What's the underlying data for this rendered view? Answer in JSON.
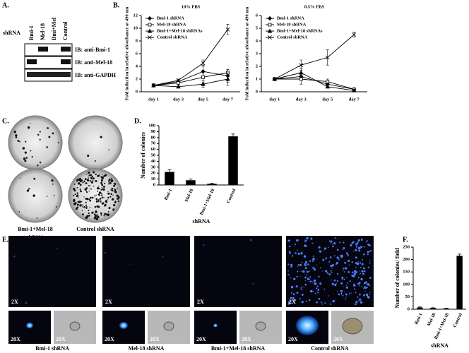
{
  "panel_labels": [
    "A.",
    "B.",
    "C.",
    "D.",
    "E.",
    "F."
  ],
  "blot": {
    "row_label": "shRNA",
    "lanes": [
      "Bmi-1",
      "Mel-18",
      "Bmi+Mel",
      "Control"
    ],
    "antibodies": [
      "IB: anti-Bmi-1",
      "IB: anti-Mel-18",
      "IB: anti-GAPDH"
    ]
  },
  "colony_plates": [
    [
      "Bmi-1 shRNA"
    ],
    [
      "Mel-18 shRNA"
    ],
    [
      "Bmi-1+Mel-18",
      "shRNA"
    ],
    [
      "Control shRNA"
    ]
  ],
  "imaging": {
    "low_mag": "2X",
    "high_mag": "20X",
    "captions": [
      "Bmi-1 shRNA",
      "Mel-18 shRNA",
      "Bmi-1+Mel-18 shRNA",
      "Control shRNA"
    ]
  },
  "chart_data": [
    {
      "type": "line",
      "title": "10% FBS",
      "ylabel": "Fold induction in relative absorbance at 490 nm",
      "categories": [
        "day 1",
        "day 3",
        "day 5",
        "day 7"
      ],
      "ylim": [
        0,
        12
      ],
      "yticks": [
        0,
        2,
        4,
        6,
        8,
        10,
        12
      ],
      "series": [
        {
          "name": "Bmi-1 shRNA",
          "color": "#000000",
          "marker": "diamond",
          "values": [
            1,
            1.6,
            3.2,
            2.5
          ],
          "errors": [
            0.1,
            0.3,
            1.0,
            1.0
          ]
        },
        {
          "name": "Mel-18 shRNA",
          "color": "#000000",
          "marker": "square",
          "values": [
            1,
            1.4,
            2.3,
            3.0
          ],
          "errors": [
            0.1,
            0.2,
            0.8,
            0.5
          ]
        },
        {
          "name": "Bmi-1+Mel-18 shRNAs",
          "color": "#000000",
          "marker": "triangle",
          "values": [
            1,
            0.8,
            1.2,
            2.0
          ],
          "errors": [
            0.1,
            0.1,
            0.5,
            1.0
          ]
        },
        {
          "name": "Control shRNA",
          "color": "#000000",
          "marker": "cross",
          "values": [
            1,
            1.8,
            4.5,
            9.8
          ],
          "errors": [
            0.1,
            0.2,
            0.5,
            0.8
          ]
        }
      ]
    },
    {
      "type": "line",
      "title": "0.5% FBS",
      "ylabel": "Fold induction in relative absorbance at 490 nm",
      "categories": [
        "day 1",
        "day 3",
        "day 5",
        "day 7"
      ],
      "ylim": [
        0,
        6
      ],
      "yticks": [
        0,
        1,
        2,
        3,
        4,
        5,
        6
      ],
      "series": [
        {
          "name": "Bmi-1 shRNA",
          "color": "#000000",
          "marker": "diamond",
          "values": [
            1,
            1.2,
            0.6,
            0.2
          ],
          "errors": [
            0.05,
            0.3,
            0.2,
            0.1
          ]
        },
        {
          "name": "Mel-18 shRNA",
          "color": "#000000",
          "marker": "square",
          "values": [
            1,
            1.0,
            0.8,
            0.2
          ],
          "errors": [
            0.05,
            0.4,
            0.2,
            0.1
          ]
        },
        {
          "name": "Bmi-1+Mel-18 shRNAs",
          "color": "#000000",
          "marker": "triangle",
          "values": [
            1,
            1.5,
            0.4,
            0.1
          ],
          "errors": [
            0.05,
            0.3,
            0.1,
            0.1
          ]
        },
        {
          "name": "Control shRNA",
          "color": "#000000",
          "marker": "cross",
          "values": [
            1,
            2.1,
            2.7,
            4.5
          ],
          "errors": [
            0.05,
            0.4,
            0.6,
            0.2
          ]
        }
      ]
    },
    {
      "type": "bar",
      "ylabel": "Number of colonies",
      "xlabel": "shRNA",
      "categories": [
        "Bmi-1",
        "Mel-18",
        "Bmi-1+Mel-18",
        "Control"
      ],
      "values": [
        22,
        8,
        2,
        82
      ],
      "errors": [
        4,
        2,
        1,
        4
      ],
      "color": "#000000",
      "ylim": [
        0,
        100
      ],
      "yticks": [
        0,
        10,
        20,
        30,
        40,
        50,
        60,
        70,
        80,
        90,
        100
      ]
    },
    {
      "type": "bar",
      "ylabel": "Number of colonies/ field",
      "xlabel": "shRNA",
      "categories": [
        "Bmi-1",
        "Mel-18",
        "Bmi-1+Mel-18",
        "Control"
      ],
      "values": [
        7,
        5,
        3,
        215
      ],
      "errors": [
        2,
        1,
        1,
        7
      ],
      "color": "#000000",
      "ylim": [
        0,
        250
      ],
      "yticks": [
        0,
        50,
        100,
        150,
        200,
        250
      ]
    }
  ]
}
